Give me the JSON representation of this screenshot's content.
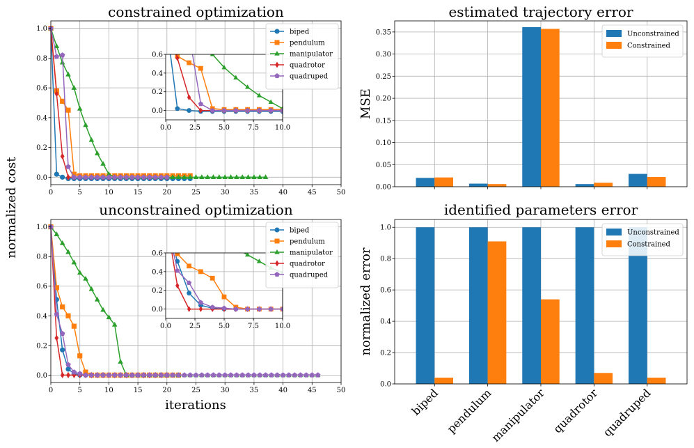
{
  "figure": {
    "ylabel_left": "normalized cost",
    "xlabel_left": "iterations"
  },
  "chart_data": [
    {
      "id": "constrained",
      "type": "line",
      "title": "constrained optimization",
      "xlabel": "",
      "ylabel": "",
      "xlim": [
        0,
        50
      ],
      "ylim": [
        -0.05,
        1.05
      ],
      "xticks": [
        0,
        5,
        10,
        15,
        20,
        25,
        30,
        35,
        40,
        45,
        50
      ],
      "yticks": [
        0.0,
        0.2,
        0.4,
        0.6,
        0.8,
        1.0
      ],
      "legend": "top-right",
      "inset": {
        "xlim": [
          0,
          10
        ],
        "ylim": [
          -0.1,
          0.6
        ],
        "xticks": [
          0.0,
          2.5,
          5.0,
          7.5,
          10.0
        ],
        "yticks": [
          0.0,
          0.2,
          0.4,
          0.6
        ],
        "placement": "upper-middle"
      },
      "series": [
        {
          "name": "biped",
          "color": "#1f77b4",
          "marker": "circle",
          "x": [
            0,
            1,
            2,
            3,
            4,
            5,
            6,
            7,
            8,
            9,
            10,
            11,
            12,
            13,
            14,
            15,
            16,
            17,
            18,
            19,
            20,
            21,
            22,
            23,
            24
          ],
          "y": [
            1.0,
            0.02,
            0.0,
            -0.01,
            -0.01,
            -0.01,
            -0.01,
            -0.01,
            -0.01,
            -0.01,
            -0.01,
            -0.01,
            -0.01,
            -0.01,
            -0.01,
            -0.01,
            -0.01,
            -0.01,
            -0.01,
            -0.01,
            -0.01,
            -0.01,
            -0.01,
            -0.01,
            -0.01
          ]
        },
        {
          "name": "pendulum",
          "color": "#ff7f0e",
          "marker": "square",
          "x": [
            0,
            1,
            2,
            3,
            4,
            5,
            6,
            7,
            8,
            9,
            10,
            11,
            12,
            13,
            14,
            15,
            16,
            17,
            18,
            19,
            20,
            21,
            22,
            23,
            24
          ],
          "y": [
            1.0,
            0.58,
            0.51,
            0.45,
            0.02,
            0.01,
            0.01,
            0.01,
            0.01,
            0.01,
            0.01,
            0.01,
            0.01,
            0.01,
            0.01,
            0.01,
            0.01,
            0.01,
            0.01,
            0.01,
            0.01,
            0.01,
            0.01,
            0.01,
            0.01
          ]
        },
        {
          "name": "manipulator",
          "color": "#2ca02c",
          "marker": "triangle",
          "x": [
            0,
            1,
            2,
            3,
            4,
            5,
            6,
            7,
            8,
            9,
            10,
            11,
            12,
            13,
            14,
            15,
            16,
            17,
            18,
            19,
            20,
            21,
            22,
            23,
            24,
            25,
            26,
            27,
            28,
            29,
            30,
            31,
            32,
            33,
            34,
            35,
            36,
            37
          ],
          "y": [
            1.0,
            0.88,
            0.77,
            0.69,
            0.6,
            0.46,
            0.35,
            0.25,
            0.16,
            0.09,
            0.02,
            0.0,
            0.0,
            0.0,
            0.0,
            0.0,
            0.0,
            0.0,
            0.0,
            0.0,
            0.0,
            0.0,
            0.0,
            0.0,
            0.0,
            0.0,
            0.0,
            0.0,
            0.0,
            0.0,
            0.0,
            0.0,
            0.0,
            0.0,
            0.0,
            0.0,
            0.0,
            0.0
          ]
        },
        {
          "name": "quadrotor",
          "color": "#d62728",
          "marker": "diamond",
          "x": [
            0,
            1,
            2,
            3,
            4,
            5,
            6,
            7,
            8,
            9,
            10,
            11,
            12,
            13,
            14,
            15,
            16,
            17,
            18,
            19,
            20
          ],
          "y": [
            1.0,
            0.56,
            0.14,
            0.0,
            0.0,
            0.0,
            0.0,
            0.0,
            0.0,
            0.0,
            0.0,
            0.0,
            0.0,
            0.0,
            0.0,
            0.0,
            0.0,
            0.0,
            0.0,
            0.0,
            0.0
          ]
        },
        {
          "name": "quadruped",
          "color": "#9467bd",
          "marker": "pentagon",
          "x": [
            0,
            1,
            2,
            3,
            4,
            5,
            6,
            7,
            8,
            9,
            10,
            11,
            12,
            13,
            14,
            15,
            16,
            17,
            18,
            19,
            20
          ],
          "y": [
            1.0,
            0.81,
            0.82,
            0.07,
            0.0,
            0.0,
            0.0,
            0.0,
            0.0,
            0.0,
            0.0,
            0.0,
            0.0,
            0.0,
            0.0,
            0.0,
            0.0,
            0.0,
            0.0,
            0.0,
            0.0
          ]
        }
      ]
    },
    {
      "id": "unconstrained",
      "type": "line",
      "title": "unconstrained optimization",
      "xlabel": "iterations",
      "ylabel": "",
      "xlim": [
        0,
        50
      ],
      "ylim": [
        -0.05,
        1.05
      ],
      "xticks": [
        0,
        5,
        10,
        15,
        20,
        25,
        30,
        35,
        40,
        45,
        50
      ],
      "yticks": [
        0.0,
        0.2,
        0.4,
        0.6,
        0.8,
        1.0
      ],
      "legend": "top-right",
      "inset": {
        "xlim": [
          0,
          10
        ],
        "ylim": [
          -0.1,
          0.6
        ],
        "xticks": [
          0.0,
          2.5,
          5.0,
          7.5,
          10.0
        ],
        "yticks": [
          0.0,
          0.2,
          0.4,
          0.6
        ],
        "placement": "upper-middle"
      },
      "series": [
        {
          "name": "biped",
          "color": "#1f77b4",
          "marker": "circle",
          "x": [
            0,
            1,
            2,
            3,
            4,
            5,
            6,
            7,
            8,
            9,
            10,
            11,
            12,
            13,
            14,
            15,
            16,
            17,
            18,
            19,
            20,
            21,
            22
          ],
          "y": [
            1.0,
            0.51,
            0.17,
            0.04,
            0.01,
            0.0,
            0.0,
            0.0,
            0.0,
            0.0,
            0.0,
            0.0,
            0.0,
            0.0,
            0.0,
            0.0,
            0.0,
            0.0,
            0.0,
            0.0,
            0.0,
            0.0,
            0.0
          ]
        },
        {
          "name": "pendulum",
          "color": "#ff7f0e",
          "marker": "square",
          "x": [
            0,
            1,
            2,
            3,
            4,
            5,
            6,
            7,
            8,
            9,
            10,
            11,
            12,
            13,
            14,
            15,
            16,
            17,
            18,
            19,
            20,
            21,
            22
          ],
          "y": [
            1.0,
            0.59,
            0.46,
            0.4,
            0.33,
            0.13,
            0.02,
            0.0,
            0.0,
            0.0,
            0.0,
            0.0,
            0.0,
            0.0,
            0.0,
            0.0,
            0.0,
            0.0,
            0.0,
            0.0,
            0.0,
            0.0,
            0.0
          ]
        },
        {
          "name": "manipulator",
          "color": "#2ca02c",
          "marker": "triangle",
          "x": [
            0,
            1,
            2,
            3,
            4,
            5,
            6,
            7,
            8,
            9,
            10,
            11,
            12,
            13,
            14,
            15,
            16,
            17,
            18,
            19,
            20,
            21,
            22,
            23,
            24,
            25,
            26,
            27,
            28,
            29,
            30,
            31,
            32,
            33,
            34,
            35,
            36,
            37,
            38,
            39,
            40,
            41,
            42,
            43,
            44,
            45,
            46
          ],
          "y": [
            1.0,
            0.95,
            0.89,
            0.83,
            0.76,
            0.69,
            0.65,
            0.58,
            0.51,
            0.44,
            0.39,
            0.34,
            0.09,
            0.0,
            0.0,
            0.0,
            0.0,
            0.0,
            0.0,
            0.0,
            0.0,
            0.0,
            0.0,
            0.0,
            0.0,
            0.0,
            0.0,
            0.0,
            0.0,
            0.0,
            0.0,
            0.0,
            0.0,
            0.0,
            0.0,
            0.0,
            0.0,
            0.0,
            0.0,
            0.0,
            0.0,
            0.0,
            0.0,
            0.0,
            0.0,
            0.0,
            0.0
          ]
        },
        {
          "name": "quadrotor",
          "color": "#d62728",
          "marker": "diamond",
          "x": [
            0,
            1,
            2,
            3,
            4,
            5,
            6,
            7,
            8,
            9,
            10,
            11,
            12,
            13,
            14,
            15,
            16,
            17,
            18,
            19,
            20
          ],
          "y": [
            1.0,
            0.25,
            0.0,
            0.0,
            0.0,
            0.0,
            0.0,
            0.0,
            0.0,
            0.0,
            0.0,
            0.0,
            0.0,
            0.0,
            0.0,
            0.0,
            0.0,
            0.0,
            0.0,
            0.0,
            0.0
          ]
        },
        {
          "name": "quadruped",
          "color": "#9467bd",
          "marker": "pentagon",
          "x": [
            0,
            1,
            2,
            3,
            4,
            5,
            6,
            7,
            8,
            9,
            10,
            11,
            12,
            13,
            14,
            15,
            16,
            17,
            18,
            19,
            20,
            21,
            22,
            23,
            24,
            25,
            26,
            27,
            28,
            29,
            30,
            31,
            32,
            33,
            34,
            35,
            36,
            37,
            38,
            39,
            40,
            41,
            42,
            43,
            44,
            45,
            46
          ],
          "y": [
            1.0,
            0.41,
            0.28,
            0.07,
            0.02,
            0.01,
            0.0,
            0.0,
            0.0,
            0.0,
            0.0,
            0.0,
            0.0,
            0.0,
            0.0,
            0.0,
            0.0,
            0.0,
            0.0,
            0.0,
            0.0,
            0.0,
            0.0,
            0.0,
            0.0,
            0.0,
            0.0,
            0.0,
            0.0,
            0.0,
            0.0,
            0.0,
            0.0,
            0.0,
            0.0,
            0.0,
            0.0,
            0.0,
            0.0,
            0.0,
            0.0,
            0.0,
            0.0,
            0.0,
            0.0,
            0.0,
            0.0
          ]
        }
      ]
    },
    {
      "id": "trajectory",
      "type": "bar",
      "title": "estimated trajectory error",
      "xlabel": "",
      "ylabel": "MSE",
      "ylim": [
        0,
        0.375
      ],
      "yticks": [
        0.0,
        0.05,
        0.1,
        0.15,
        0.2,
        0.25,
        0.3,
        0.35
      ],
      "tick_decimals": 2,
      "legend": "top-right",
      "categories": [
        "biped",
        "pendulum",
        "manipulator",
        "quadrotor",
        "quadruped"
      ],
      "show_category_labels": false,
      "series": [
        {
          "name": "Unconstrained",
          "color": "#1f77b4",
          "values": [
            0.02,
            0.007,
            0.361,
            0.006,
            0.029
          ]
        },
        {
          "name": "Constrained",
          "color": "#ff7f0e",
          "values": [
            0.021,
            0.006,
            0.357,
            0.009,
            0.022
          ]
        }
      ]
    },
    {
      "id": "parameters",
      "type": "bar",
      "title": "identified parameters error",
      "xlabel": "",
      "ylabel": "normalized error",
      "ylim": [
        0,
        1.05
      ],
      "yticks": [
        0.0,
        0.2,
        0.4,
        0.6,
        0.8,
        1.0
      ],
      "tick_decimals": 1,
      "legend": "top-right",
      "categories": [
        "biped",
        "pendulum",
        "manipulator",
        "quadrotor",
        "quadruped"
      ],
      "show_category_labels": true,
      "series": [
        {
          "name": "Unconstrained",
          "color": "#1f77b4",
          "values": [
            1.0,
            1.0,
            1.0,
            1.0,
            1.0
          ]
        },
        {
          "name": "Constrained",
          "color": "#ff7f0e",
          "values": [
            0.04,
            0.91,
            0.54,
            0.07,
            0.04
          ]
        }
      ]
    }
  ]
}
